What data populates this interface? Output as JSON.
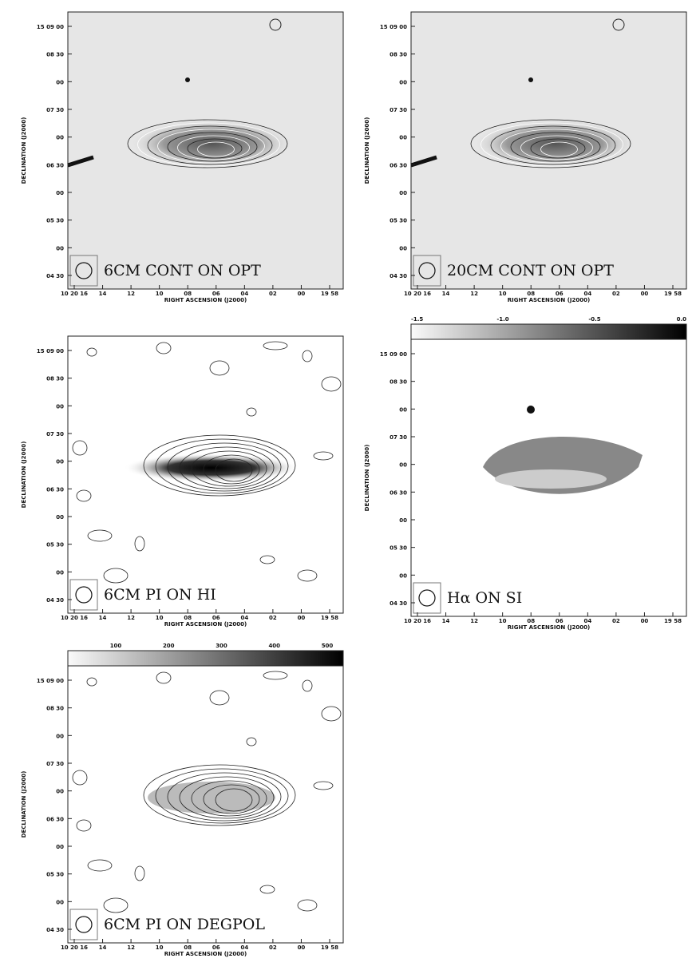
{
  "figure": {
    "panels": [
      {
        "label": "6CM CONT ON OPT",
        "ylabel": "DECLINATION (J2000)",
        "xlabel": "RIGHT ASCENSION (J2000)",
        "yticks": [
          "15 09 00",
          "08 30",
          "00",
          "07 30",
          "00",
          "06 30",
          "00",
          "05 30",
          "00",
          "04 30"
        ],
        "xticks": [
          "10 20 16",
          "14",
          "12",
          "10",
          "08",
          "06",
          "04",
          "02",
          "00",
          "19 58"
        ]
      },
      {
        "label": "20CM CONT ON OPT",
        "ylabel": "DECLINATION (J2000)",
        "xlabel": "RIGHT ASCENSION (J2000)",
        "yticks": [
          "15 09 00",
          "08 30",
          "00",
          "07 30",
          "00",
          "06 30",
          "00",
          "05 30",
          "00",
          "04 30"
        ],
        "xticks": [
          "10 20 16",
          "14",
          "12",
          "10",
          "08",
          "06",
          "04",
          "02",
          "00",
          "19 58"
        ]
      },
      {
        "label": "6CM PI ON HI",
        "ylabel": "DECLINATION (J2000)",
        "xlabel": "RIGHT ASCENSION (J2000)",
        "yticks": [
          "15 09 00",
          "08 30",
          "00",
          "07 30",
          "00",
          "06 30",
          "00",
          "05 30",
          "00",
          "04 30"
        ],
        "xticks": [
          "10 20 16",
          "14",
          "12",
          "10",
          "08",
          "06",
          "04",
          "02",
          "00",
          "19 58"
        ]
      },
      {
        "label": "Hα ON SI",
        "ylabel": "DECLINATION (J2000)",
        "xlabel": "RIGHT ASCENSION (J2000)",
        "yticks": [
          "15 09 00",
          "08 30",
          "00",
          "07 30",
          "00",
          "06 30",
          "00",
          "05 30",
          "00",
          "04 30"
        ],
        "xticks": [
          "10 20 16",
          "14",
          "12",
          "10",
          "08",
          "06",
          "04",
          "02",
          "00",
          "19 58"
        ],
        "colorbar": [
          "-1.5",
          "-1.0",
          "-0.5",
          "0.0"
        ]
      },
      {
        "label": "6CM PI ON DEGPOL",
        "ylabel": "DECLINATION (J2000)",
        "xlabel": "RIGHT ASCENSION (J2000)",
        "yticks": [
          "15 09 00",
          "08 30",
          "00",
          "07 30",
          "00",
          "06 30",
          "00",
          "05 30",
          "00",
          "04 30"
        ],
        "xticks": [
          "10 20 16",
          "14",
          "12",
          "10",
          "08",
          "06",
          "04",
          "02",
          "00",
          "19 58"
        ],
        "colorbar": [
          "100",
          "200",
          "300",
          "400",
          "500"
        ]
      }
    ]
  }
}
